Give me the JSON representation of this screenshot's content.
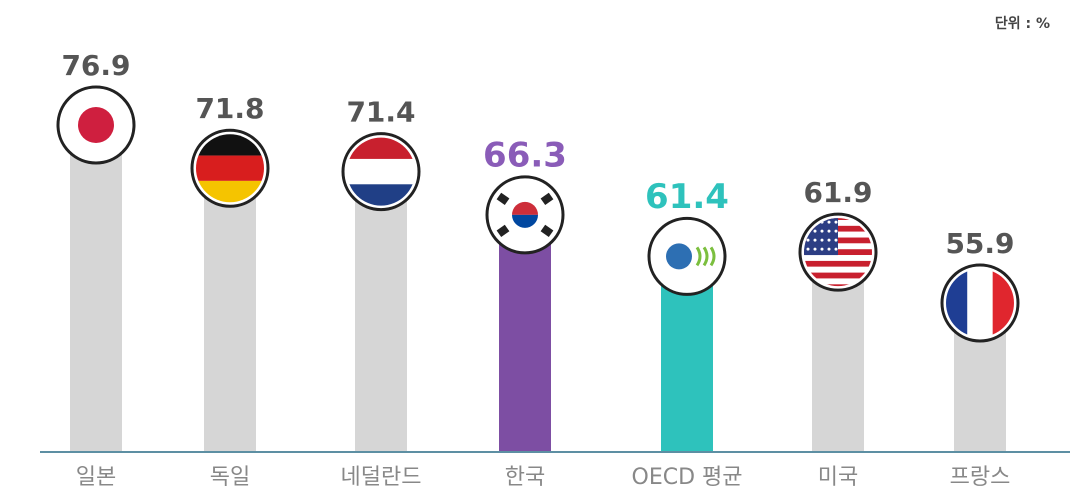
{
  "chart_data": {
    "type": "bar",
    "unit_label": "단위 : %",
    "categories": [
      "일본",
      "독일",
      "네덜란드",
      "한국",
      "OECD 평균",
      "미국",
      "프랑스"
    ],
    "values": [
      76.9,
      71.8,
      71.4,
      66.3,
      61.4,
      61.9,
      55.9
    ],
    "colors": [
      "#d6d6d6",
      "#d6d6d6",
      "#d6d6d6",
      "#7d4ea3",
      "#2ec2bc",
      "#d6d6d6",
      "#d6d6d6"
    ],
    "label_colors": [
      "#555555",
      "#555555",
      "#555555",
      "#8a5cb8",
      "#2ec2bc",
      "#555555",
      "#555555"
    ]
  }
}
